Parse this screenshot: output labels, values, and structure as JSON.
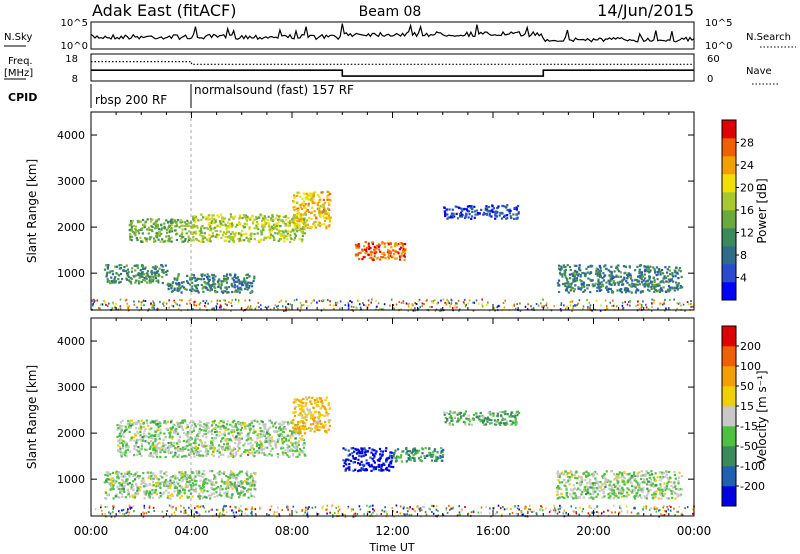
{
  "header": {
    "title_left": "Adak East (fitACF)",
    "title_center": "Beam 08",
    "title_right": "14/Jun/2015"
  },
  "summary": {
    "nsky_label": "N.Sky",
    "nsky_ticks": [
      "10^5",
      "10^0"
    ],
    "nsearch_label": "N.Search",
    "nsearch_ticks": [
      "10^5",
      "10^0"
    ],
    "freq_label": "Freq.",
    "freq_unit": "[MHz]",
    "freq_ticks": [
      "18",
      "8"
    ],
    "nave_label": "Nave",
    "nave_ticks": [
      "60",
      "0"
    ],
    "cpid_label": "CPID",
    "cpid_segments": [
      {
        "label": "rbsp 200 RF",
        "start_hour": 0.0
      },
      {
        "label": "normalsound (fast) 157 RF",
        "start_hour": 4.0
      }
    ],
    "freq_steps_hours": [
      [
        0,
        12.0
      ],
      [
        10.0,
        9.8
      ],
      [
        18.0,
        12.0
      ],
      [
        24,
        12.0
      ]
    ],
    "nave_steps_hours": [
      [
        0,
        0.72
      ],
      [
        4.0,
        0.62
      ],
      [
        24,
        0.62
      ]
    ]
  },
  "chart_data": [
    {
      "type": "heatmap",
      "name": "power",
      "ylabel": "Slant Range [km]",
      "xlabel": "",
      "x_range_hours": [
        0,
        24
      ],
      "ylim": [
        200,
        4500
      ],
      "yticks": [
        1000,
        2000,
        3000,
        4000
      ],
      "colorbar": {
        "label": "Power [dB]",
        "ticks": [
          "28",
          "24",
          "20",
          "16",
          "12",
          "8",
          "4"
        ],
        "colors": [
          "#0000ff",
          "#2a4ad0",
          "#2f6c8a",
          "#3c8a5c",
          "#6aaa3c",
          "#a8c830",
          "#f0e000",
          "#f0a000",
          "#f06000",
          "#e00000"
        ]
      },
      "echo_regions": [
        {
          "x": [
            1.5,
            4.0
          ],
          "y": [
            1700,
            2200
          ],
          "level": 0.45
        },
        {
          "x": [
            4.0,
            8.5
          ],
          "y": [
            1700,
            2300
          ],
          "level": 0.55
        },
        {
          "x": [
            8.0,
            9.5
          ],
          "y": [
            2000,
            2800
          ],
          "level": 0.7
        },
        {
          "x": [
            10.5,
            12.5
          ],
          "y": [
            1300,
            1700
          ],
          "level": 0.85
        },
        {
          "x": [
            14.0,
            17.0
          ],
          "y": [
            2200,
            2500
          ],
          "level": 0.15
        },
        {
          "x": [
            0.5,
            3.0
          ],
          "y": [
            800,
            1200
          ],
          "level": 0.35
        },
        {
          "x": [
            3.0,
            6.5
          ],
          "y": [
            600,
            1000
          ],
          "level": 0.3
        },
        {
          "x": [
            18.5,
            23.5
          ],
          "y": [
            600,
            1200
          ],
          "level": 0.3
        }
      ]
    },
    {
      "type": "heatmap",
      "name": "velocity",
      "ylabel": "Slant Range [km]",
      "xlabel": "Time UT",
      "x_range_hours": [
        0,
        24
      ],
      "xticks": [
        "00:00",
        "04:00",
        "08:00",
        "12:00",
        "16:00",
        "20:00",
        "00:00"
      ],
      "ylim": [
        200,
        4500
      ],
      "yticks": [
        1000,
        2000,
        3000,
        4000
      ],
      "colorbar": {
        "label": "Velocity [m s⁻¹]",
        "ticks": [
          "200",
          "100",
          "50",
          "15",
          "-15",
          "-50",
          "-100",
          "-200"
        ],
        "colors": [
          "#0000e0",
          "#2060b0",
          "#3c8a5c",
          "#50c040",
          "#c8c8c8",
          "#f0d000",
          "#f0a000",
          "#f06000",
          "#e00000"
        ]
      },
      "echo_regions": [
        {
          "x": [
            1.0,
            8.5
          ],
          "y": [
            1500,
            2300
          ],
          "level": 0.45
        },
        {
          "x": [
            8.0,
            9.5
          ],
          "y": [
            2000,
            2800
          ],
          "level": 0.65
        },
        {
          "x": [
            10.0,
            12.0
          ],
          "y": [
            1200,
            1700
          ],
          "level": 0.05
        },
        {
          "x": [
            12.0,
            14.0
          ],
          "y": [
            1400,
            1700
          ],
          "level": 0.3
        },
        {
          "x": [
            14.0,
            17.0
          ],
          "y": [
            2200,
            2500
          ],
          "level": 0.35
        },
        {
          "x": [
            0.5,
            6.5
          ],
          "y": [
            600,
            1200
          ],
          "level": 0.45
        },
        {
          "x": [
            18.5,
            23.5
          ],
          "y": [
            600,
            1200
          ],
          "level": 0.45
        }
      ]
    }
  ]
}
